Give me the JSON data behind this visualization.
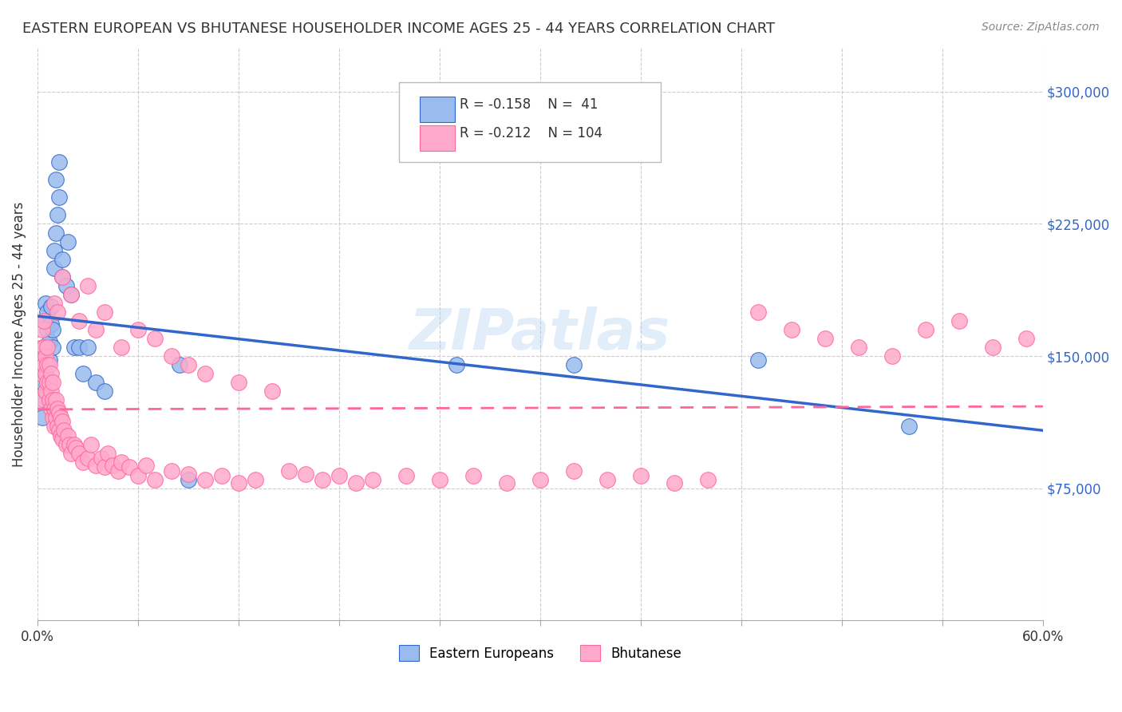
{
  "title": "EASTERN EUROPEAN VS BHUTANESE HOUSEHOLDER INCOME AGES 25 - 44 YEARS CORRELATION CHART",
  "source": "Source: ZipAtlas.com",
  "xlabel": "",
  "ylabel": "Householder Income Ages 25 - 44 years",
  "xlim": [
    0,
    0.6
  ],
  "ylim": [
    0,
    325000
  ],
  "yticks": [
    0,
    75000,
    150000,
    225000,
    300000
  ],
  "ytick_labels": [
    "",
    "$75,000",
    "$150,000",
    "$225,000",
    "$300,000"
  ],
  "xtick_labels": [
    "0.0%",
    "",
    "",
    "",
    "",
    "",
    "",
    "",
    "",
    "",
    "60.0%"
  ],
  "bg_color": "#ffffff",
  "grid_color": "#cccccc",
  "watermark": "ZIPatlas",
  "legend_R1": "R = -0.158",
  "legend_N1": "N =  41",
  "legend_R2": "R = -0.212",
  "legend_N2": "N = 104",
  "blue_color": "#99bbee",
  "pink_color": "#ffaacc",
  "blue_line_color": "#3366cc",
  "pink_line_color": "#ff6699",
  "eastern_european_x": [
    0.002,
    0.003,
    0.003,
    0.004,
    0.004,
    0.005,
    0.005,
    0.005,
    0.006,
    0.006,
    0.006,
    0.007,
    0.007,
    0.008,
    0.008,
    0.009,
    0.009,
    0.01,
    0.01,
    0.011,
    0.011,
    0.012,
    0.013,
    0.013,
    0.015,
    0.015,
    0.017,
    0.018,
    0.02,
    0.022,
    0.025,
    0.027,
    0.03,
    0.035,
    0.04,
    0.085,
    0.09,
    0.25,
    0.32,
    0.43,
    0.52
  ],
  "eastern_european_y": [
    130000,
    115000,
    135000,
    125000,
    155000,
    140000,
    170000,
    180000,
    145000,
    165000,
    175000,
    148000,
    158000,
    168000,
    178000,
    155000,
    165000,
    200000,
    210000,
    220000,
    250000,
    230000,
    260000,
    240000,
    205000,
    195000,
    190000,
    215000,
    185000,
    155000,
    155000,
    140000,
    155000,
    135000,
    130000,
    145000,
    80000,
    145000,
    145000,
    148000,
    110000
  ],
  "bhutanese_x": [
    0.001,
    0.002,
    0.002,
    0.003,
    0.003,
    0.004,
    0.004,
    0.004,
    0.005,
    0.005,
    0.005,
    0.006,
    0.006,
    0.006,
    0.007,
    0.007,
    0.007,
    0.008,
    0.008,
    0.008,
    0.009,
    0.009,
    0.009,
    0.01,
    0.01,
    0.011,
    0.011,
    0.012,
    0.012,
    0.013,
    0.013,
    0.014,
    0.014,
    0.015,
    0.015,
    0.016,
    0.017,
    0.018,
    0.019,
    0.02,
    0.022,
    0.023,
    0.025,
    0.027,
    0.03,
    0.032,
    0.035,
    0.038,
    0.04,
    0.042,
    0.045,
    0.048,
    0.05,
    0.055,
    0.06,
    0.065,
    0.07,
    0.08,
    0.09,
    0.1,
    0.11,
    0.12,
    0.13,
    0.15,
    0.16,
    0.17,
    0.18,
    0.19,
    0.2,
    0.22,
    0.24,
    0.26,
    0.28,
    0.3,
    0.32,
    0.34,
    0.36,
    0.38,
    0.4,
    0.43,
    0.45,
    0.47,
    0.49,
    0.51,
    0.53,
    0.55,
    0.57,
    0.59,
    0.01,
    0.012,
    0.015,
    0.02,
    0.025,
    0.03,
    0.035,
    0.04,
    0.05,
    0.06,
    0.07,
    0.08,
    0.09,
    0.1,
    0.12,
    0.14
  ],
  "bhutanese_y": [
    125000,
    150000,
    140000,
    155000,
    165000,
    170000,
    145000,
    155000,
    130000,
    140000,
    150000,
    135000,
    145000,
    155000,
    125000,
    135000,
    145000,
    120000,
    130000,
    140000,
    115000,
    125000,
    135000,
    110000,
    120000,
    115000,
    125000,
    110000,
    120000,
    108000,
    118000,
    105000,
    115000,
    103000,
    113000,
    108000,
    100000,
    105000,
    100000,
    95000,
    100000,
    98000,
    95000,
    90000,
    92000,
    100000,
    88000,
    92000,
    87000,
    95000,
    88000,
    85000,
    90000,
    87000,
    82000,
    88000,
    80000,
    85000,
    83000,
    80000,
    82000,
    78000,
    80000,
    85000,
    83000,
    80000,
    82000,
    78000,
    80000,
    82000,
    80000,
    82000,
    78000,
    80000,
    85000,
    80000,
    82000,
    78000,
    80000,
    175000,
    165000,
    160000,
    155000,
    150000,
    165000,
    170000,
    155000,
    160000,
    180000,
    175000,
    195000,
    185000,
    170000,
    190000,
    165000,
    175000,
    155000,
    165000,
    160000,
    150000,
    145000,
    140000,
    135000,
    130000
  ]
}
